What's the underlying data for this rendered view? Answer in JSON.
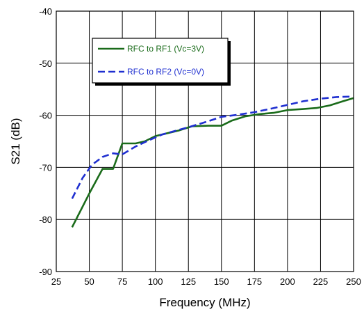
{
  "chart_data": {
    "type": "line",
    "xlabel": "Frequency (MHz)",
    "ylabel": "S21 (dB)",
    "xlim": [
      25,
      250
    ],
    "ylim": [
      -90,
      -40
    ],
    "xticks": [
      25,
      50,
      75,
      100,
      125,
      150,
      175,
      200,
      225,
      250
    ],
    "yticks": [
      -90,
      -80,
      -70,
      -60,
      -50,
      -40
    ],
    "grid": true,
    "legend_placement": "top-left",
    "series": [
      {
        "name": "RFC to RF1 (Vc=3V)",
        "color": "#1a6b1a",
        "style": "solid",
        "x": [
          37,
          50,
          60,
          68,
          75,
          85,
          92,
          100,
          108,
          118,
          128,
          140,
          150,
          158,
          168,
          178,
          190,
          200,
          212,
          222,
          232,
          242,
          250
        ],
        "y": [
          -81.5,
          -75,
          -70.3,
          -70.3,
          -65.4,
          -65.4,
          -65,
          -64,
          -63.5,
          -62.9,
          -62.1,
          -62,
          -62,
          -61,
          -60.2,
          -59.8,
          -59.5,
          -59,
          -58.8,
          -58.6,
          -58.1,
          -57.3,
          -56.7
        ]
      },
      {
        "name": "RFC to RF2 (Vc=0V)",
        "color": "#1f2fd0",
        "style": "dashed",
        "x": [
          37,
          45,
          52,
          60,
          68,
          75,
          85,
          95,
          105,
          115,
          125,
          138,
          150,
          162,
          175,
          188,
          200,
          212,
          225,
          237,
          248
        ],
        "y": [
          -76,
          -72,
          -69.5,
          -68,
          -67.3,
          -67.5,
          -66,
          -64.8,
          -63.7,
          -63,
          -62.3,
          -61.3,
          -60.3,
          -59.9,
          -59.4,
          -58.7,
          -58,
          -57.3,
          -56.8,
          -56.5,
          -56.4
        ]
      }
    ]
  }
}
